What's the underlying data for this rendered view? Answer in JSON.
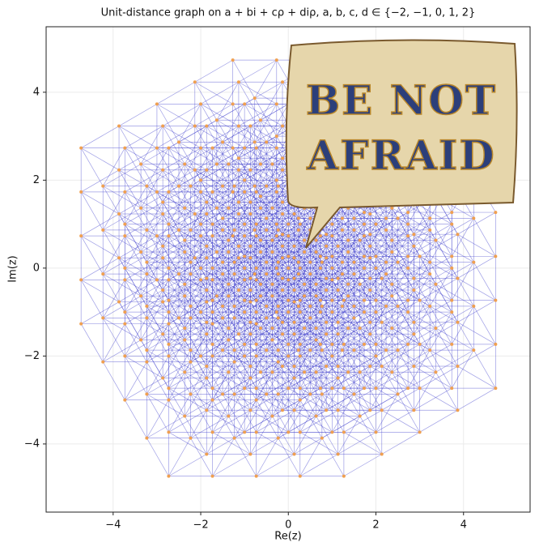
{
  "chart_data": {
    "type": "graph",
    "title": "Unit-distance graph on a + bi + cρ + diρ, a, b, c, d ∈ {−2, −1, 0, 1, 2}",
    "coefficients": [
      -2,
      -1,
      0,
      1,
      2
    ],
    "x_label": "Re(z)",
    "y_label": "Im(z)",
    "xlim": [
      -5.53,
      5.52
    ],
    "ylim": [
      -5.55,
      5.49
    ],
    "xticks": [
      {
        "value": -4,
        "label": "−4"
      },
      {
        "value": -2,
        "label": "−2"
      },
      0,
      2,
      4
    ],
    "yticks": [
      {
        "value": -4,
        "label": "−4"
      },
      {
        "value": -2,
        "label": "−2"
      },
      0,
      2,
      4
    ],
    "grid": true,
    "edge_color": "#4a4ad0",
    "node_color": "#f0a050"
  },
  "overlay": {
    "line1": "BE NOT",
    "line2": "AFRAID"
  }
}
